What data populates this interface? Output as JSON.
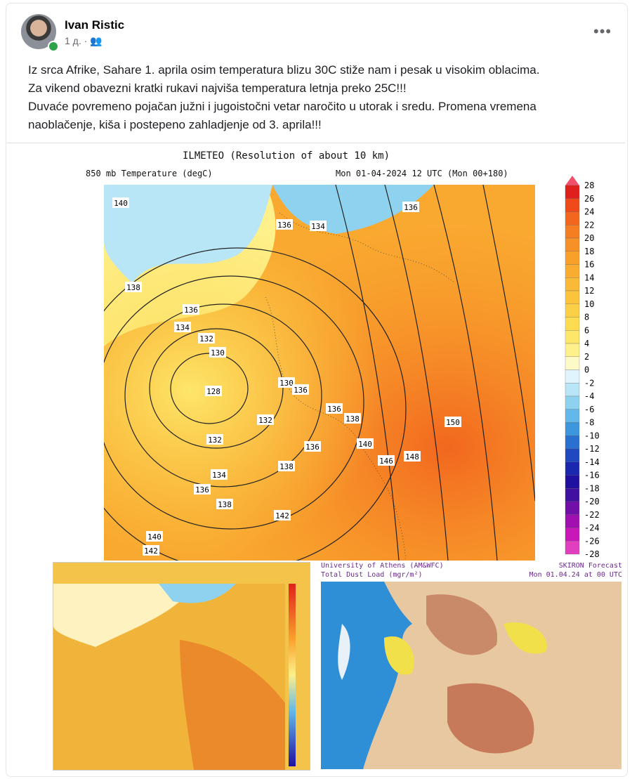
{
  "post": {
    "author": "Ivan Ristic",
    "time": "1 д.",
    "text": [
      "Iz srca Afrike, Sahare 1. aprila osim temperatura blizu 30C stiže nam i pesak u visokim oblacima.",
      "Za vikend obavezni kratki rukavi najviša temperatura letnja preko 25C!!!",
      "Duvaće povremeno pojačan južni i jugoistočni vetar naročito u utorak i sredu. Promena vremena",
      "naoblačenje, kiša i postepeno zahladjenje od 3. aprila!!!"
    ]
  },
  "images": {
    "main": {
      "title": "ILMETEO (Resolution of about 10 km)",
      "field": "850 mb Temperature (degC)",
      "valid": "Mon 01-04-2024 12 UTC (Mon 00+180)",
      "colorbar": [
        28,
        26,
        24,
        22,
        20,
        18,
        16,
        14,
        12,
        10,
        8,
        6,
        4,
        2,
        0,
        -2,
        -4,
        -6,
        -8,
        -10,
        -12,
        -14,
        -16,
        -18,
        -20,
        -22,
        -24,
        -26,
        -28
      ],
      "contour_labels": [
        "140",
        "136",
        "134",
        "136",
        "138",
        "136",
        "134",
        "132",
        "130",
        "128",
        "130",
        "136",
        "136",
        "138",
        "132",
        "150",
        "132",
        "136",
        "140",
        "146",
        "148",
        "138",
        "134",
        "136",
        "138",
        "142",
        "140",
        "142"
      ]
    },
    "dust": {
      "source": "University of Athens (AM&WFC)",
      "field": "Total Dust Load (mgr/m²)",
      "model": "SKIRON Forecast",
      "valid": "Mon 01.04.24 at 00 UTC"
    }
  }
}
